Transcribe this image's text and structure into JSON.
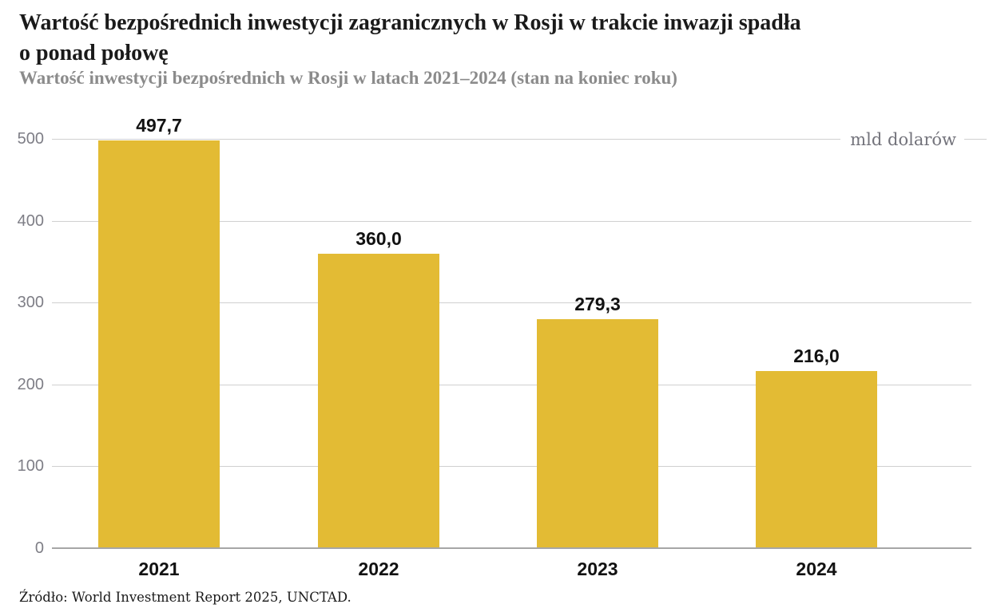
{
  "header": {
    "title": "Wartość bezpośrednich inwestycji zagranicznych w Rosji w trakcie inwazji spadła\no ponad połowę",
    "subtitle": "Wartość inwestycji bezpośrednich w Rosji w latach 2021–2024 (stan na koniec roku)"
  },
  "chart_data": {
    "type": "bar",
    "title": "Wartość inwestycji bezpośrednich w Rosji w latach 2021–2024 (stan na koniec roku)",
    "unit_label": "mld dolarów",
    "categories": [
      "2021",
      "2022",
      "2023",
      "2024"
    ],
    "values": [
      497.7,
      360.0,
      279.3,
      216.0
    ],
    "value_labels": [
      "497,7",
      "360,0",
      "279,3",
      "216,0"
    ],
    "ylim": [
      0,
      500
    ],
    "yticks": [
      0,
      100,
      200,
      300,
      400,
      500
    ],
    "grid": true,
    "legend": false,
    "bar_color": "#e3bb34"
  },
  "footer": {
    "source": "Źródło: World Investment Report 2025, UNCTAD."
  },
  "colors": {
    "bar": "#e3bb34",
    "title": "#1a1a1a",
    "subtitle": "#8b8b8b",
    "axis_tick": "#7e7e86",
    "gridline": "#d0d0d0",
    "baseline": "#a6a6a6",
    "unit_label": "#73737b",
    "value_label": "#121212"
  }
}
